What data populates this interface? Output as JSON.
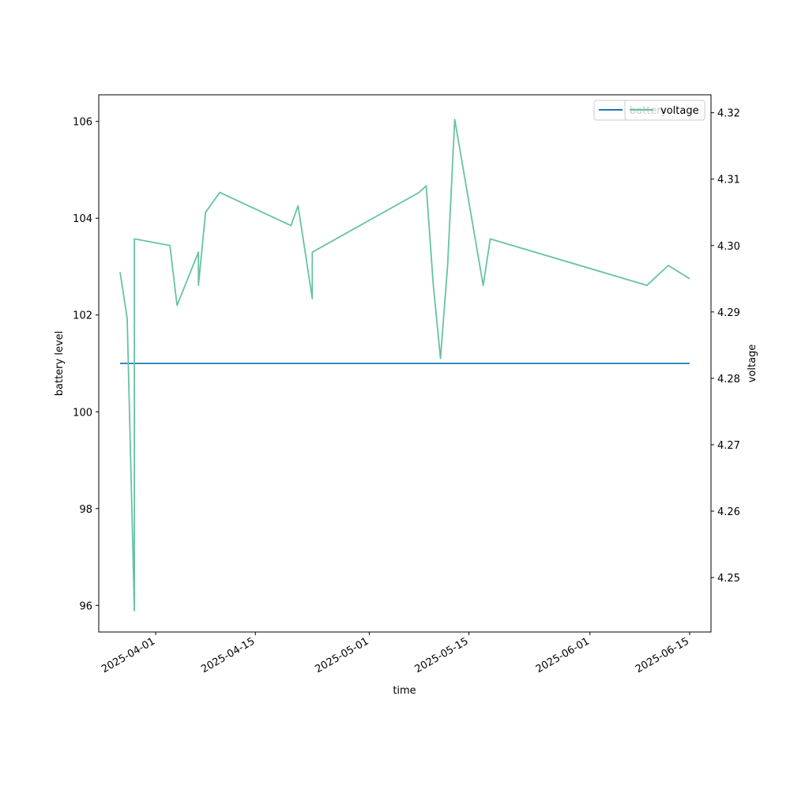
{
  "chart_data": {
    "type": "line",
    "xlabel": "time",
    "ylabel_left": "battery level",
    "ylabel_right": "voltage",
    "x_ticks": [
      "2025-04-01",
      "2025-04-15",
      "2025-05-01",
      "2025-05-15",
      "2025-06-01",
      "2025-06-15"
    ],
    "x_range": [
      "2025-03-24",
      "2025-06-18"
    ],
    "y_left_ticks": [
      "96",
      "98",
      "100",
      "102",
      "104",
      "106"
    ],
    "y_left_range": [
      95.45,
      106.55
    ],
    "y_right_ticks": [
      "4.25",
      "4.26",
      "4.27",
      "4.28",
      "4.29",
      "4.30",
      "4.31",
      "4.32"
    ],
    "y_right_range": [
      4.2418,
      4.3227
    ],
    "grid": false,
    "legend_placement": "top-right",
    "series": [
      {
        "name": "battery",
        "axis": "left",
        "color": "#1f77b4",
        "points": [
          [
            "2025-03-27",
            101
          ],
          [
            "2025-06-15",
            101
          ]
        ]
      },
      {
        "name": "voltage",
        "axis": "right",
        "color": "#66c2a5",
        "points": [
          [
            "2025-03-27",
            4.296
          ],
          [
            "2025-03-28",
            4.289
          ],
          [
            "2025-03-29",
            4.245
          ],
          [
            "2025-03-29",
            4.301
          ],
          [
            "2025-04-03",
            4.3
          ],
          [
            "2025-04-04",
            4.291
          ],
          [
            "2025-04-07",
            4.299
          ],
          [
            "2025-04-07",
            4.294
          ],
          [
            "2025-04-08",
            4.305
          ],
          [
            "2025-04-10",
            4.308
          ],
          [
            "2025-04-20",
            4.303
          ],
          [
            "2025-04-21",
            4.306
          ],
          [
            "2025-04-23",
            4.292
          ],
          [
            "2025-04-23",
            4.299
          ],
          [
            "2025-05-08",
            4.308
          ],
          [
            "2025-05-09",
            4.309
          ],
          [
            "2025-05-10",
            4.294
          ],
          [
            "2025-05-11",
            4.283
          ],
          [
            "2025-05-12",
            4.297
          ],
          [
            "2025-05-13",
            4.319
          ],
          [
            "2025-05-17",
            4.294
          ],
          [
            "2025-05-18",
            4.301
          ],
          [
            "2025-06-09",
            4.294
          ],
          [
            "2025-06-12",
            4.297
          ],
          [
            "2025-06-15",
            4.295
          ]
        ]
      }
    ]
  }
}
